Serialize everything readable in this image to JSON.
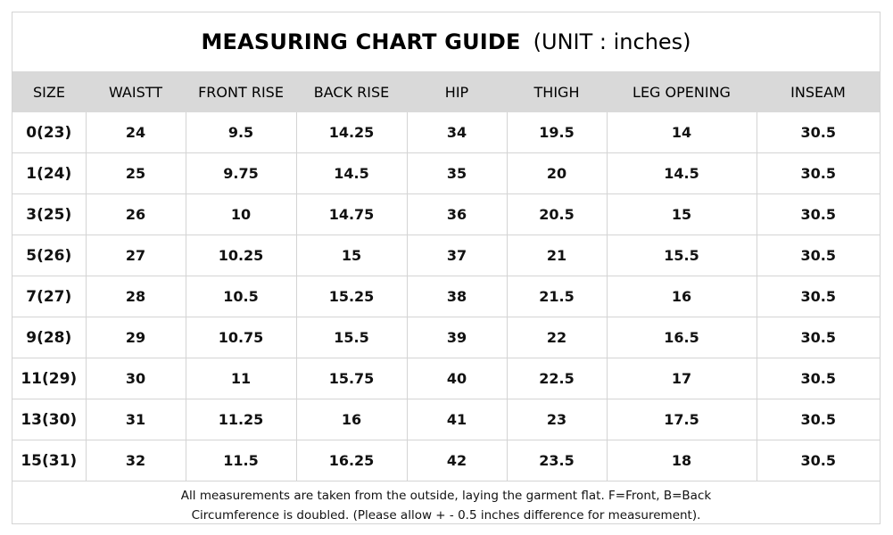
{
  "title": {
    "main": "MEASURING CHART GUIDE",
    "unit": "(UNIT : inches)"
  },
  "table": {
    "headers": [
      "SIZE",
      "WAISTT",
      "FRONT RISE",
      "BACK RISE",
      "HIP",
      "THIGH",
      "LEG OPENING",
      "INSEAM"
    ],
    "rows": [
      [
        "0(23)",
        "24",
        "9.5",
        "14.25",
        "34",
        "19.5",
        "14",
        "30.5"
      ],
      [
        "1(24)",
        "25",
        "9.75",
        "14.5",
        "35",
        "20",
        "14.5",
        "30.5"
      ],
      [
        "3(25)",
        "26",
        "10",
        "14.75",
        "36",
        "20.5",
        "15",
        "30.5"
      ],
      [
        "5(26)",
        "27",
        "10.25",
        "15",
        "37",
        "21",
        "15.5",
        "30.5"
      ],
      [
        "7(27)",
        "28",
        "10.5",
        "15.25",
        "38",
        "21.5",
        "16",
        "30.5"
      ],
      [
        "9(28)",
        "29",
        "10.75",
        "15.5",
        "39",
        "22",
        "16.5",
        "30.5"
      ],
      [
        "11(29)",
        "30",
        "11",
        "15.75",
        "40",
        "22.5",
        "17",
        "30.5"
      ],
      [
        "13(30)",
        "31",
        "11.25",
        "16",
        "41",
        "23",
        "17.5",
        "30.5"
      ],
      [
        "15(31)",
        "32",
        "11.5",
        "16.25",
        "42",
        "23.5",
        "18",
        "30.5"
      ]
    ]
  },
  "footnote": {
    "line1": "All measurements are taken from the outside, laying the garment flat.  F=Front, B=Back",
    "line2": "Circumference is doubled. (Please allow + - 0.5 inches difference for measurement)."
  }
}
